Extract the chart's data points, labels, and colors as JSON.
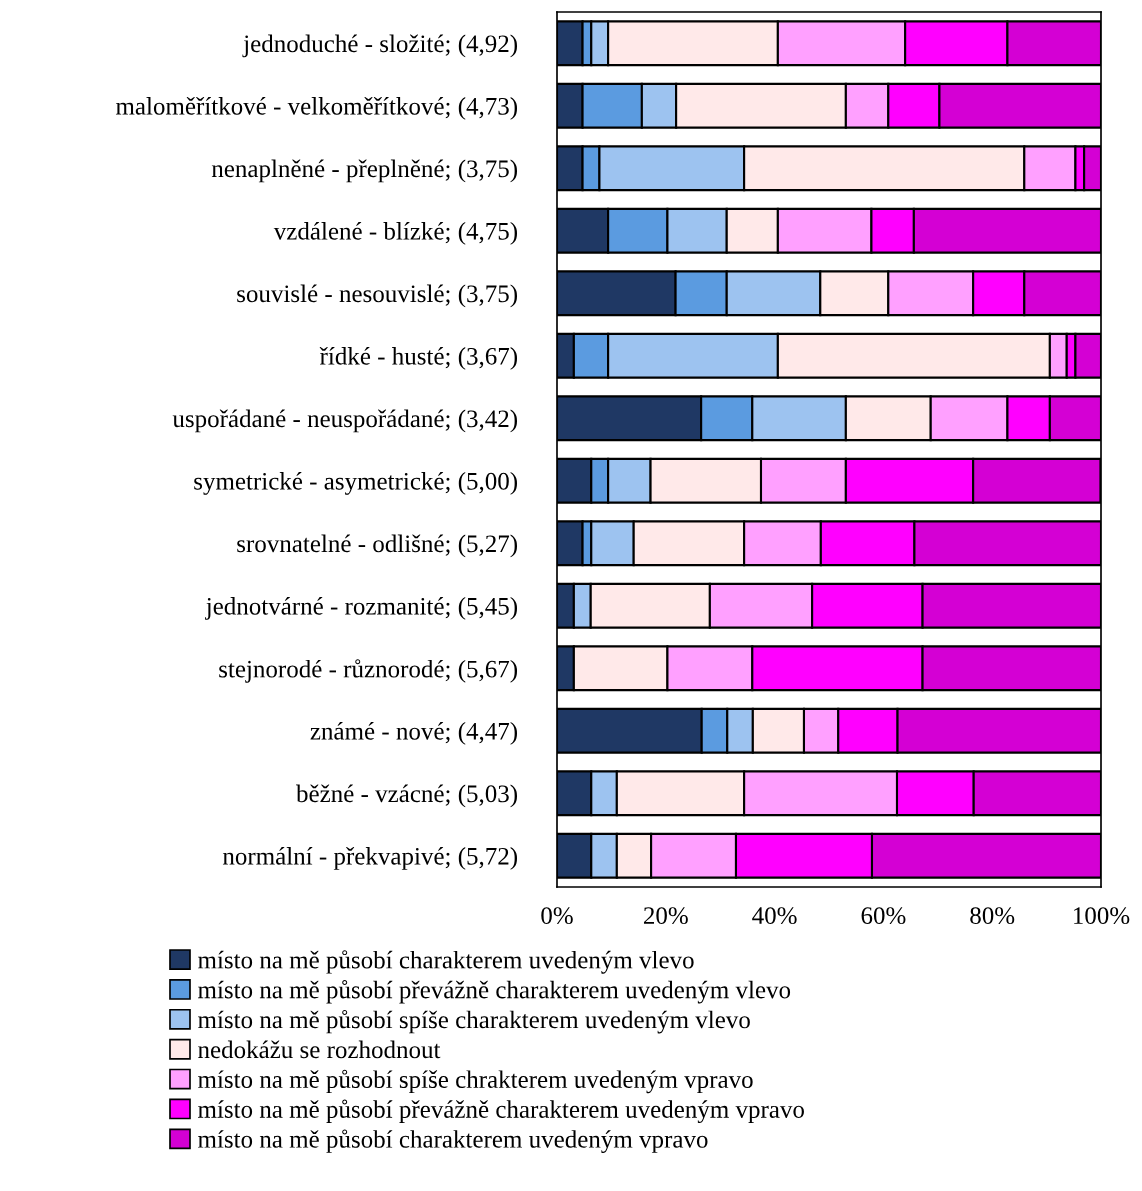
{
  "chart_data": {
    "type": "bar",
    "orientation": "horizontal",
    "stacked": true,
    "categories": [
      "jednoduché - složité; (4,92)",
      "maloměřítkové - velkoměřítkové; (4,73)",
      "nenaplněné - přeplněné; (3,75)",
      "vzdálené - blízké; (4,75)",
      "souvislé - nesouvislé; (3,75)",
      "řídké - husté; (3,67)",
      "uspořádané - neuspořádané; (3,42)",
      "symetrické - asymetrické; (5,00)",
      "srovnatelné - odlišné; (5,27)",
      "jednotvárné - rozmanité; (5,45)",
      "stejnorodé - různorodé; (5,67)",
      "známé - nové; (4,47)",
      "běžné - vzácné; (5,03)",
      "normální - překvapivé; (5,72)"
    ],
    "series": [
      {
        "name": "místo na mě působí charakterem uvedeným vlevo",
        "color": "#1f3864",
        "values": [
          4.7,
          4.7,
          4.7,
          9.4,
          21.8,
          3.1,
          26.5,
          6.3,
          4.7,
          3.1,
          3.1,
          26.6,
          6.3,
          6.3
        ]
      },
      {
        "name": "místo na mě působí převážně charakterem uvedeným vlevo",
        "color": "#5b9be0",
        "values": [
          1.6,
          10.9,
          3.1,
          10.9,
          9.4,
          6.3,
          9.4,
          3.1,
          1.6,
          null,
          null,
          4.7,
          null,
          null
        ]
      },
      {
        "name": "místo na mě působí spíše charakterem uvedeným vlevo",
        "color": "#9dc3f0",
        "values": [
          3.1,
          6.3,
          26.6,
          10.9,
          17.2,
          31.2,
          17.2,
          7.8,
          7.8,
          3.1,
          null,
          4.7,
          4.7,
          4.7
        ]
      },
      {
        "name": "nedokážu se rozhodnout",
        "color": "#ffe9e9",
        "values": [
          31.2,
          31.2,
          51.5,
          9.4,
          12.5,
          50.0,
          15.6,
          20.3,
          20.3,
          21.9,
          17.2,
          9.4,
          23.4,
          6.3
        ]
      },
      {
        "name": "místo na mě působí spíše chrakterem uvedeným vpravo",
        "color": "#ffa0ff",
        "values": [
          23.4,
          7.8,
          9.4,
          17.2,
          15.6,
          3.1,
          14.1,
          15.6,
          14.1,
          18.8,
          15.6,
          6.3,
          28.1,
          15.6
        ]
      },
      {
        "name": "místo na mě působí převážně charakterem uvedeným vpravo",
        "color": "#ff00ff",
        "values": [
          18.8,
          9.4,
          1.6,
          7.8,
          9.4,
          1.6,
          7.8,
          23.4,
          17.2,
          20.3,
          31.3,
          10.9,
          14.1,
          25.0
        ]
      },
      {
        "name": "místo na mě působí charakterem uvedeným vpravo",
        "color": "#d400d4",
        "values": [
          17.2,
          29.7,
          3.1,
          34.4,
          14.1,
          4.7,
          9.4,
          23.4,
          34.3,
          32.8,
          32.8,
          37.4,
          23.4,
          42.1
        ]
      }
    ],
    "xlim": [
      0,
      100
    ],
    "xticks": [
      {
        "value": 0,
        "label": "0%"
      },
      {
        "value": 20,
        "label": "20%"
      },
      {
        "value": 40,
        "label": "40%"
      },
      {
        "value": 60,
        "label": "60%"
      },
      {
        "value": 80,
        "label": "80%"
      },
      {
        "value": 100,
        "label": "100%"
      }
    ],
    "grid": false,
    "legend": "bottom"
  }
}
